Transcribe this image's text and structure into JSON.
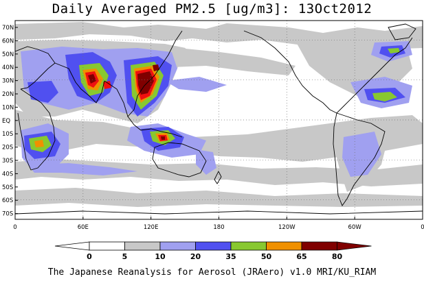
{
  "title": "Daily Averaged PM2.5 [ug/m3]: 13Oct2012",
  "footer": "The Japanese Reanalysis for Aerosol (JRAero) v1.0 MRI/KU_RIAM",
  "map": {
    "lat_labels": [
      "70N",
      "60N",
      "50N",
      "40N",
      "30N",
      "20N",
      "10N",
      "EQ",
      "10S",
      "20S",
      "30S",
      "40S",
      "50S",
      "60S",
      "70S"
    ],
    "lon_labels": [
      "0",
      "60E",
      "120E",
      "180",
      "120W",
      "60W",
      "0"
    ]
  },
  "colorbar": {
    "levels": [
      "0",
      "5",
      "10",
      "20",
      "35",
      "50",
      "65",
      "80"
    ],
    "colors": [
      "#ffffff",
      "#c8c8c8",
      "#a0a0f0",
      "#5050f0",
      "#88c830",
      "#f09000",
      "#f01010",
      "#800000"
    ]
  },
  "colors": {
    "bin_5_10": "#c8c8c8",
    "bin_10_20": "#a0a0f0",
    "bin_20_35": "#5050f0",
    "bin_35_50": "#88c830",
    "bin_50_65": "#f09000",
    "bin_65_80": "#f01010",
    "bin_80_plus": "#800000",
    "coastline": "#000000"
  }
}
